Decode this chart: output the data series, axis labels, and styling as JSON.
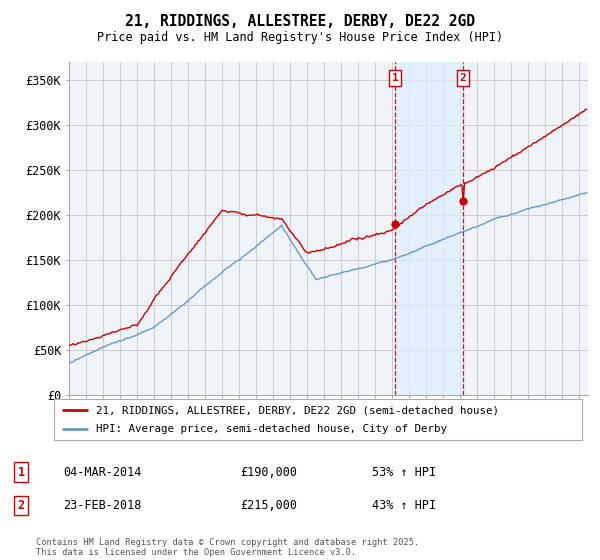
{
  "title": "21, RIDDINGS, ALLESTREE, DERBY, DE22 2GD",
  "subtitle": "Price paid vs. HM Land Registry's House Price Index (HPI)",
  "ylabel_ticks": [
    "£0",
    "£50K",
    "£100K",
    "£150K",
    "£200K",
    "£250K",
    "£300K",
    "£350K"
  ],
  "ytick_vals": [
    0,
    50000,
    100000,
    150000,
    200000,
    250000,
    300000,
    350000
  ],
  "ylim": [
    0,
    370000
  ],
  "xlim_start": 1995.0,
  "xlim_end": 2025.5,
  "sale1_date": 2014.17,
  "sale1_price": 190000,
  "sale2_date": 2018.14,
  "sale2_price": 215000,
  "hpi_color": "#6699cc",
  "price_color": "#cc0000",
  "shade_color": "#ddeeff",
  "legend_line1": "21, RIDDINGS, ALLESTREE, DERBY, DE22 2GD (semi-detached house)",
  "legend_line2": "HPI: Average price, semi-detached house, City of Derby",
  "annotation1_date": "04-MAR-2014",
  "annotation1_price": "£190,000",
  "annotation1_pct": "53% ↑ HPI",
  "annotation2_date": "23-FEB-2018",
  "annotation2_price": "£215,000",
  "annotation2_pct": "43% ↑ HPI",
  "footer": "Contains HM Land Registry data © Crown copyright and database right 2025.\nThis data is licensed under the Open Government Licence v3.0.",
  "bg_color": "#f0f4f8",
  "grid_color": "#cccccc"
}
